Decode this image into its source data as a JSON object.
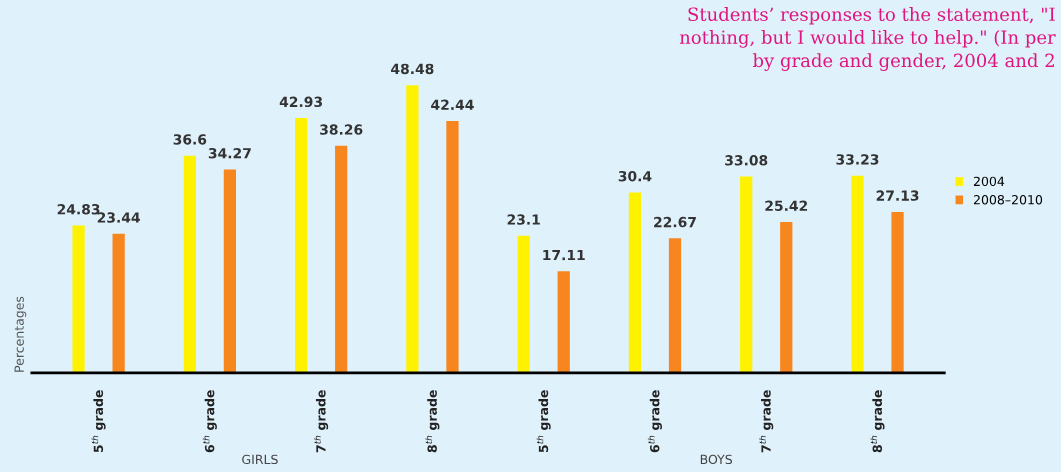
{
  "chart_data": {
    "type": "bar",
    "title": "Students’ responses to the statement, \"I\nnothing, but I would like to help.\" (In per\nby grade and gender, 2004 and 2",
    "ylabel": "Percentages",
    "categories": [
      "5$^{th}$ grade",
      "6$^{th}$ grade",
      "7$^{th}$ grade",
      "8$^{th}$ grade",
      "5$^{th}$ grade",
      "6$^{th}$ grade",
      "7$^{th}$ grade",
      "8$^{th}$ grade"
    ],
    "series": [
      {
        "name": "2004",
        "color": "#fff200",
        "values": [
          24.83,
          36.6,
          42.93,
          48.48,
          23.1,
          30.4,
          33.08,
          33.23
        ]
      },
      {
        "name": "2008–2010",
        "color": "#f7861f",
        "values": [
          23.44,
          34.27,
          38.26,
          42.44,
          17.11,
          22.67,
          25.42,
          27.13
        ]
      }
    ],
    "annotations": [
      "GIRLS",
      "BOYS"
    ],
    "tick_labels": "x",
    "data_labels": true,
    "grid": false,
    "legend": "right"
  }
}
